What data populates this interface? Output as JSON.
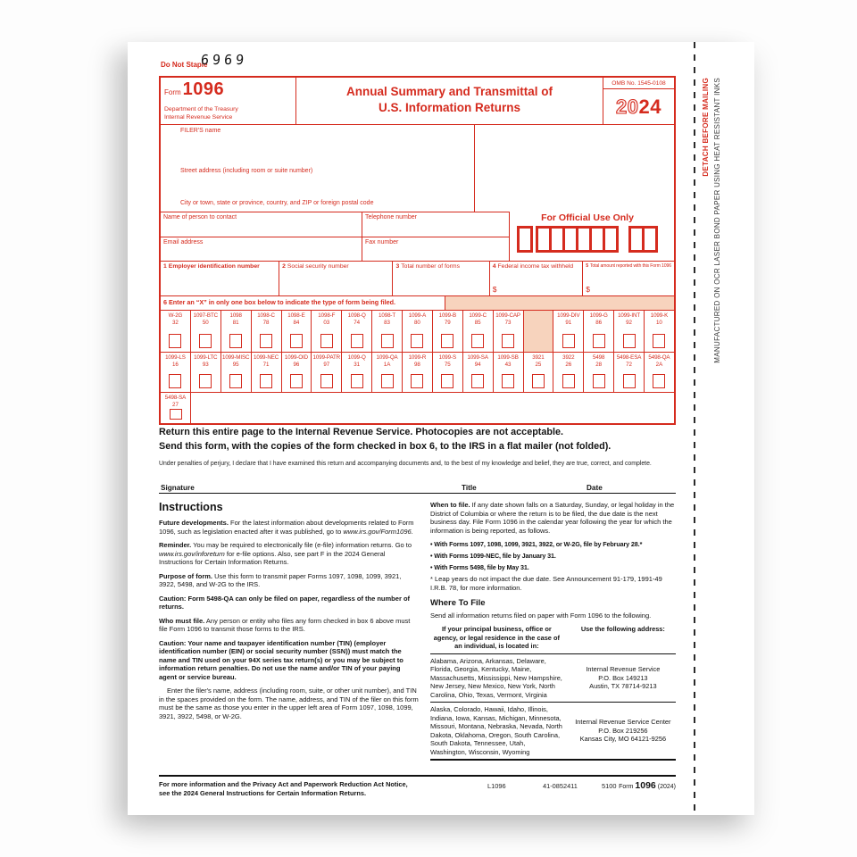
{
  "page": {
    "do_not_staple": "Do Not Staple",
    "ocr_number": "6969"
  },
  "header": {
    "form_word": "Form",
    "form_number": "1096",
    "dept": "Department of the Treasury",
    "irs": "Internal Revenue Service",
    "title_line1": "Annual Summary and Transmittal of",
    "title_line2": "U.S. Information Returns",
    "omb": "OMB No. 1545-0108",
    "year_outline": "20",
    "year_bold": "24"
  },
  "filer": {
    "name_label": "FILER'S name",
    "street_label": "Street address (including room or suite number)",
    "city_label": "City or town, state or province, country, and ZIP or foreign postal code"
  },
  "contact": {
    "name": "Name of person to contact",
    "phone": "Telephone number",
    "email": "Email address",
    "fax": "Fax number",
    "official_use": "For Official Use Only"
  },
  "boxes": {
    "b1": {
      "num": "1",
      "label": "Employer identification number"
    },
    "b2": {
      "num": "2",
      "label": "Social security number"
    },
    "b3": {
      "num": "3",
      "label": "Total number of forms"
    },
    "b4": {
      "num": "4",
      "label": "Federal income tax withheld",
      "prefix": "$"
    },
    "b5": {
      "num": "5",
      "label": "Total amount reported with this Form 1096",
      "prefix": "$"
    }
  },
  "box6_label": "6 Enter an “X” in only one box below to indicate the type of form being filed.",
  "form_grid": {
    "row1": [
      {
        "name": "W-2G",
        "code": "32"
      },
      {
        "name": "1097-BTC",
        "code": "50"
      },
      {
        "name": "1098",
        "code": "81"
      },
      {
        "name": "1098-C",
        "code": "78"
      },
      {
        "name": "1098-E",
        "code": "84"
      },
      {
        "name": "1098-F",
        "code": "03"
      },
      {
        "name": "1098-Q",
        "code": "74"
      },
      {
        "name": "1098-T",
        "code": "83"
      },
      {
        "name": "1099-A",
        "code": "80"
      },
      {
        "name": "1099-B",
        "code": "79"
      },
      {
        "name": "1099-C",
        "code": "85"
      },
      {
        "name": "1099-CAP",
        "code": "73"
      },
      {
        "blank": true
      },
      {
        "name": "1099-DIV",
        "code": "91"
      },
      {
        "name": "1099-G",
        "code": "86"
      },
      {
        "name": "1099-INT",
        "code": "92"
      },
      {
        "name": "1099-K",
        "code": "10"
      }
    ],
    "row2": [
      {
        "name": "1099-LS",
        "code": "16"
      },
      {
        "name": "1099-LTC",
        "code": "93"
      },
      {
        "name": "1099-MISC",
        "code": "95"
      },
      {
        "name": "1099-NEC",
        "code": "71"
      },
      {
        "name": "1099-OID",
        "code": "96"
      },
      {
        "name": "1099-PATR",
        "code": "97"
      },
      {
        "name": "1099-Q",
        "code": "31"
      },
      {
        "name": "1099-QA",
        "code": "1A"
      },
      {
        "name": "1099-R",
        "code": "98"
      },
      {
        "name": "1099-S",
        "code": "75"
      },
      {
        "name": "1099-SA",
        "code": "94"
      },
      {
        "name": "1099-SB",
        "code": "43"
      },
      {
        "name": "3921",
        "code": "25"
      },
      {
        "name": "3922",
        "code": "26"
      },
      {
        "name": "5498",
        "code": "28"
      },
      {
        "name": "5498-ESA",
        "code": "72"
      },
      {
        "name": "5498-QA",
        "code": "2A"
      }
    ],
    "row3_first": {
      "name": "5498-SA",
      "code": "27"
    }
  },
  "return_notice": {
    "line1": "Return this entire page to the Internal Revenue Service. Photocopies are not acceptable.",
    "line2": "Send this form, with the copies of the form checked in box 6, to the IRS in a flat mailer (not folded)."
  },
  "perjury": "Under penalties of perjury, I declare that I have examined this return and accompanying documents and, to the best of my knowledge and belief, they are true, correct, and complete.",
  "signature": {
    "signature": "Signature",
    "title": "Title",
    "date": "Date"
  },
  "instructions": {
    "heading": "Instructions",
    "left": [
      {
        "segments": [
          {
            "b": "Future developments."
          },
          {
            "t": " For the latest information about developments related to Form 1096, such as legislation enacted after it was published, go to "
          },
          {
            "i": "www.irs.gov/Form1096"
          },
          {
            "t": "."
          }
        ]
      },
      {
        "segments": [
          {
            "b": "Reminder."
          },
          {
            "t": " You may be required to electronically file (e-file) information returns. Go to "
          },
          {
            "i": "www.irs.gov/inforeturn"
          },
          {
            "t": " for e-file options.  Also, see part F in the 2024 General Instructions for Certain Information Returns."
          }
        ]
      },
      {
        "segments": [
          {
            "b": "Purpose of form."
          },
          {
            "t": " Use this form to transmit paper Forms 1097, 1098, 1099, 3921, 3922, 5498, and W-2G to the IRS."
          }
        ]
      },
      {
        "segments": [
          {
            "b": "Caution: Form 5498-QA can only be filed on paper, regardless of the number of returns."
          }
        ]
      },
      {
        "segments": [
          {
            "b": "Who must file."
          },
          {
            "t": " Any person or entity who files any form checked in box 6 above must file Form 1096 to transmit those forms to the IRS."
          }
        ]
      },
      {
        "segments": [
          {
            "b": "Caution: Your name and taxpayer identification number (TIN) (employer identification number (EIN) or social security number (SSN)) must match the name and TIN used on your 94X series tax return(s) or you may be subject to information return penalties. Do not use the name and/or TIN of your paying agent or service bureau."
          }
        ]
      },
      {
        "indent": true,
        "segments": [
          {
            "t": "Enter the filer's name, address (including room, suite, or other unit number), and TIN in the spaces provided on the form. The name, address, and TIN of the filer on this form must be the same as those you enter in the upper left area of Form 1097, 1098, 1099, 3921, 3922, 5498, or W-2G."
          }
        ]
      }
    ],
    "when": {
      "segments": [
        {
          "b": "When to file."
        },
        {
          "t": " If any date shown falls on a Saturday, Sunday, or legal holiday in the District of Columbia or where the return is to be filed, the due date is the next business day. File Form 1096 in the calendar year following the year for which the information is being reported, as follows."
        }
      ]
    },
    "bullets": [
      "With Forms 1097, 1098, 1099, 3921, 3922, or W-2G, file by February 28.*",
      "With Forms 1099-NEC, file by January 31.",
      "With Forms 5498, file by May 31."
    ],
    "footnote": "* Leap years do not impact the due date. See Announcement 91-179, 1991-49 I.R.B. 78, for more information.",
    "where_heading": "Where To File",
    "where_intro": "Send all information returns filed on paper with Form 1096 to the following.",
    "table": {
      "col1_header": "If your principal business, office or agency, or legal residence in the case of an individual, is located in:",
      "col2_header": "Use the following address:",
      "rows": [
        {
          "states": "Alabama, Arizona, Arkansas, Delaware, Florida, Georgia, Kentucky, Maine, Massachusetts, Mississippi, New Hampshire, New Jersey, New Mexico, New York, North Carolina, Ohio, Texas, Vermont, Virginia",
          "address": [
            "Internal Revenue Service",
            "P.O. Box 149213",
            "Austin, TX 78714-9213"
          ]
        },
        {
          "states": "Alaska, Colorado, Hawaii, Idaho, Illinois, Indiana, Iowa, Kansas, Michigan, Minnesota, Missouri, Montana, Nebraska, Nevada, North Dakota, Oklahoma, Oregon, South Carolina, South Dakota, Tennessee, Utah, Washington, Wisconsin, Wyoming",
          "address": [
            "Internal Revenue Service Center",
            "P.O. Box 219256",
            "Kansas City, MO 64121-9256"
          ]
        }
      ]
    }
  },
  "footer": {
    "notice": "For more information and the Privacy Act and Paperwork Reduction Act Notice,\nsee the 2024 General Instructions for Certain Information Returns.",
    "code1": "L1096",
    "code2": "41-0852411",
    "code3": "5100",
    "form_word": "Form",
    "form_number": "1096",
    "year": "(2024)"
  },
  "stub": {
    "detach": "DETACH BEFORE MAILING",
    "manufactured": "MANUFACTURED ON OCR LASER BOND PAPER USING HEAT RESISTANT INKS"
  }
}
